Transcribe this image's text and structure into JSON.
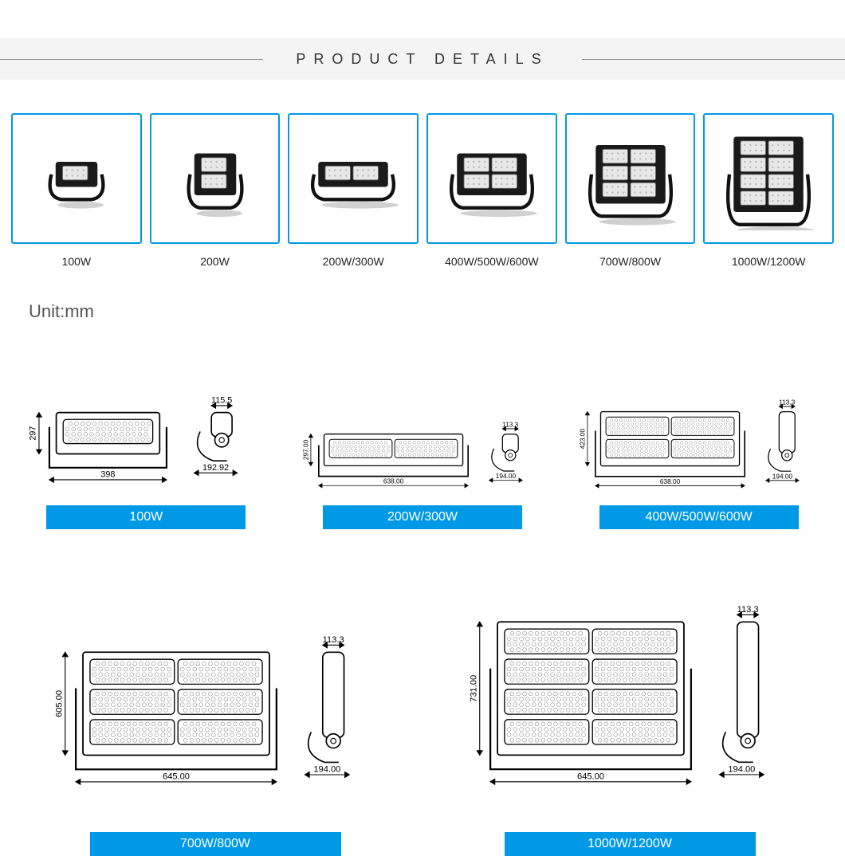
{
  "header": {
    "title": "PRODUCT DETAILS"
  },
  "unit_label": "Unit:mm",
  "colors": {
    "accent": "#0099e5",
    "band_bg": "#f4f4f4",
    "text": "#222222",
    "badge_text": "#ffffff"
  },
  "thumbs": [
    {
      "label": "100W",
      "modules_w": 1,
      "modules_h": 1
    },
    {
      "label": "200W",
      "modules_w": 1,
      "modules_h": 2
    },
    {
      "label": "200W/300W",
      "modules_w": 2,
      "modules_h": 1
    },
    {
      "label": "400W/500W/600W",
      "modules_w": 2,
      "modules_h": 2
    },
    {
      "label": "700W/800W",
      "modules_w": 2,
      "modules_h": 3
    },
    {
      "label": "1000W/1200W",
      "modules_w": 2,
      "modules_h": 4
    }
  ],
  "dims_row1": [
    {
      "badge": "100W",
      "front_w": "398",
      "front_h": "297",
      "side_w": "192.92",
      "side_top": "115.5",
      "modules_h": 1
    },
    {
      "badge": "200W/300W",
      "front_w": "638.00",
      "front_h": "297.00",
      "side_w": "194.00",
      "side_top": "113.3",
      "modules_h": 1,
      "double_w": true
    },
    {
      "badge": "400W/500W/600W",
      "front_w": "638.00",
      "front_h": "423.00",
      "side_w": "194.00",
      "side_top": "113.3",
      "modules_h": 2,
      "double_w": true
    }
  ],
  "dims_row2": [
    {
      "badge": "700W/800W",
      "front_w": "645.00",
      "front_h": "605.00",
      "side_w": "194.00",
      "side_top": "113.3",
      "modules_h": 3
    },
    {
      "badge": "1000W/1200W",
      "front_w": "645.00",
      "front_h": "731.00",
      "side_w": "194.00",
      "side_top": "113.3",
      "modules_h": 4
    }
  ]
}
